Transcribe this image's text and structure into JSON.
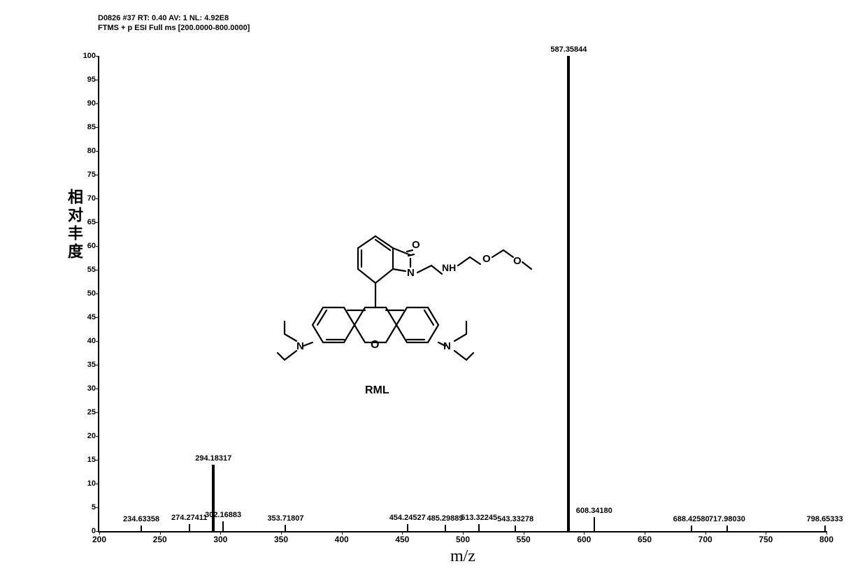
{
  "header": {
    "line1": "D0826 #37 RT: 0.40 AV: 1 NL: 4.92E8",
    "line2": "FTMS + p ESI Full ms [200.0000-800.0000]"
  },
  "chart": {
    "type": "mass-spectrum",
    "y_axis": {
      "label": "相对丰度",
      "min": 0,
      "max": 100,
      "ticks": [
        0,
        5,
        10,
        15,
        20,
        25,
        30,
        35,
        40,
        45,
        50,
        55,
        60,
        65,
        70,
        75,
        80,
        85,
        90,
        95,
        100
      ],
      "label_fontsize": 22
    },
    "x_axis": {
      "label": "m/z",
      "min": 200,
      "max": 800,
      "ticks": [
        200,
        250,
        300,
        350,
        400,
        450,
        500,
        550,
        600,
        650,
        700,
        750,
        800
      ],
      "label_fontsize": 24
    },
    "peaks": [
      {
        "mz": 234.63358,
        "intensity": 1.2,
        "label": "234.63358"
      },
      {
        "mz": 274.27411,
        "intensity": 1.5,
        "label": "274.27411"
      },
      {
        "mz": 294.18317,
        "intensity": 14,
        "label": "294.18317",
        "thick": true
      },
      {
        "mz": 302.16883,
        "intensity": 2.0,
        "label": "302.16883"
      },
      {
        "mz": 353.71807,
        "intensity": 1.3,
        "label": "353.71807"
      },
      {
        "mz": 454.24527,
        "intensity": 1.4,
        "label": "454.24527"
      },
      {
        "mz": 485.29889,
        "intensity": 1.3,
        "label": "485.29889"
      },
      {
        "mz": 513.32245,
        "intensity": 1.5,
        "label": "513.32245"
      },
      {
        "mz": 543.33278,
        "intensity": 1.2,
        "label": "543.33278"
      },
      {
        "mz": 587.35844,
        "intensity": 100,
        "label": "587.35844",
        "thick": true
      },
      {
        "mz": 608.3418,
        "intensity": 3.0,
        "label": "608.34180"
      },
      {
        "mz": 688.4258,
        "intensity": 1.2,
        "label": "688.42580"
      },
      {
        "mz": 717.9803,
        "intensity": 1.2,
        "label": "717.98030"
      },
      {
        "mz": 798.65333,
        "intensity": 1.2,
        "label": "798.65333"
      }
    ],
    "peak_color": "#000000",
    "background_color": "#ffffff",
    "axis_color": "#000000",
    "tick_fontsize": 11
  },
  "molecule": {
    "name": "RML",
    "stroke_color": "#000000",
    "stroke_width": 2.2
  }
}
